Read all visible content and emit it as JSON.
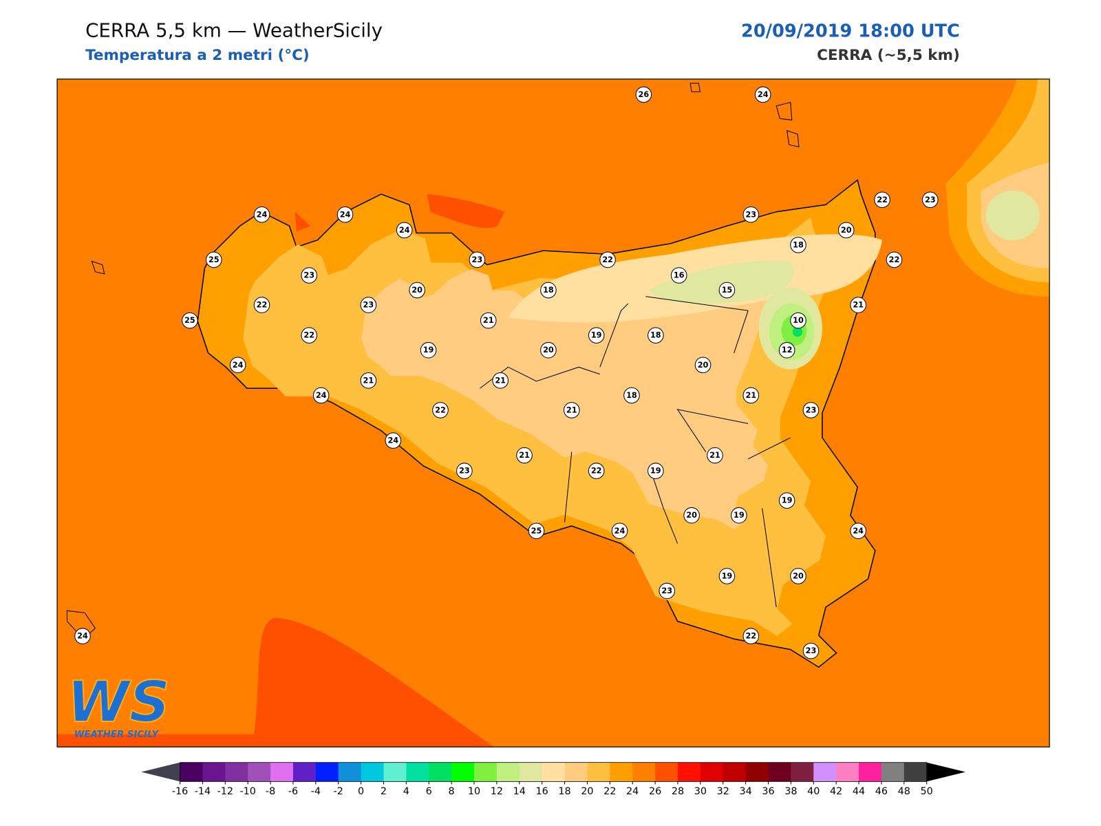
{
  "header": {
    "title": "CERRA 5,5 km — WeatherSicily",
    "subtitle": "Temperatura a 2 metri (°C)",
    "date": "20/09/2019 18:00 UTC",
    "model": "CERRA (~5,5 km)"
  },
  "stations": [
    26,
    24,
    24,
    24,
    24,
    22,
    23,
    23,
    20,
    25,
    23,
    22,
    18,
    22,
    23,
    16,
    15,
    20,
    18,
    22,
    23,
    21,
    25,
    21,
    10,
    22,
    19,
    18,
    19,
    20,
    12,
    24,
    20,
    21,
    21,
    24,
    18,
    21,
    22,
    21,
    23,
    24,
    21,
    21,
    23,
    22,
    19,
    19,
    20,
    19,
    25,
    24,
    24,
    23,
    19,
    20,
    24,
    22,
    23
  ],
  "colorbar": {
    "ticks": [
      -16,
      -14,
      -12,
      -10,
      -8,
      -6,
      -4,
      -2,
      0,
      2,
      4,
      6,
      8,
      10,
      12,
      14,
      16,
      18,
      20,
      22,
      24,
      26,
      28,
      30,
      32,
      34,
      36,
      38,
      40,
      42,
      44,
      46,
      48,
      50
    ],
    "colors": [
      "#4a0060",
      "#6a1490",
      "#8030a0",
      "#a050b8",
      "#e070f0",
      "#6020c8",
      "#0020ff",
      "#1090d8",
      "#00c8e0",
      "#60f0d0",
      "#00e0a0",
      "#00e060",
      "#00ff00",
      "#80f040",
      "#c0f080",
      "#e0e8a0",
      "#ffe0a0",
      "#ffcc80",
      "#ffc040",
      "#ffa000",
      "#ff8000",
      "#ff5000",
      "#ff1000",
      "#e00000",
      "#c00000",
      "#900000",
      "#700020",
      "#802040",
      "#d090ff",
      "#ff80c0",
      "#ff20a0",
      "#808080",
      "#404040"
    ],
    "under": "#404050",
    "over": "#000000"
  },
  "logo": {
    "mark": "WS",
    "text": "WEATHER SICILY"
  }
}
